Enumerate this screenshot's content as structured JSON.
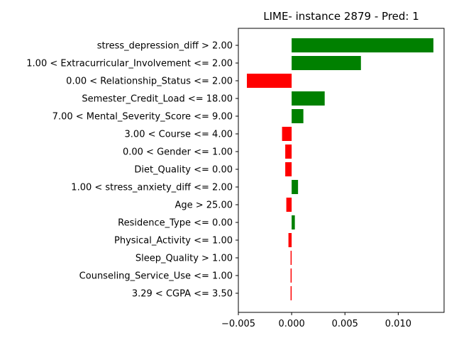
{
  "chart_data": {
    "type": "bar",
    "orientation": "horizontal",
    "title": "LIME- instance 2879 - Pred: 1",
    "xlabel": "",
    "ylabel": "",
    "xlim": [
      -0.005,
      0.0143
    ],
    "xticks": [
      -0.005,
      0.0,
      0.005,
      0.01
    ],
    "xtick_labels": [
      "−0.005",
      "0.000",
      "0.005",
      "0.010"
    ],
    "grid": false,
    "positive_color": "#008000",
    "negative_color": "#ff0000",
    "categories": [
      "stress_depression_diff > 2.00",
      "1.00 < Extracurricular_Involvement <= 2.00",
      "0.00 < Relationship_Status <= 2.00",
      "Semester_Credit_Load <= 18.00",
      "7.00 < Mental_Severity_Score <= 9.00",
      "3.00 < Course <= 4.00",
      "0.00 < Gender <= 1.00",
      "Diet_Quality <= 0.00",
      "1.00 < stress_anxiety_diff <= 2.00",
      "Age > 25.00",
      "Residence_Type <= 0.00",
      "Physical_Activity <= 1.00",
      "Sleep_Quality > 1.00",
      "Counseling_Service_Use <= 1.00",
      "3.29 < CGPA <= 3.50"
    ],
    "values": [
      0.0133,
      0.0065,
      -0.0042,
      0.0031,
      0.0011,
      -0.0009,
      -0.0006,
      -0.0006,
      0.0006,
      -0.0005,
      0.0003,
      -0.0003,
      -0.0001,
      -0.0001,
      -0.0001
    ]
  }
}
